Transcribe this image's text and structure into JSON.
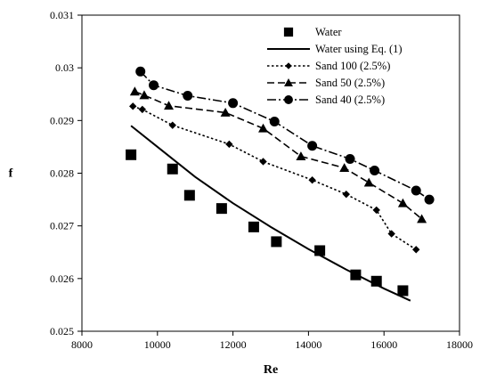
{
  "chart_data": {
    "type": "scatter",
    "xlabel": "Re",
    "ylabel": "f",
    "xlim": [
      8000,
      18000
    ],
    "ylim": [
      0.025,
      0.031
    ],
    "xticks": [
      "8000",
      "10000",
      "12000",
      "14000",
      "16000",
      "18000"
    ],
    "yticks": [
      "0.025",
      "0.026",
      "0.027",
      "0.028",
      "0.029",
      "0.03",
      "0.031"
    ],
    "grid": false,
    "legend_position": "top-right",
    "series": [
      {
        "name": "Water",
        "style": "square-markers",
        "color": "#000000",
        "x": [
          9300,
          10400,
          10850,
          11700,
          12550,
          13150,
          14300,
          15250,
          15800,
          16500
        ],
        "y": [
          0.02835,
          0.02808,
          0.02758,
          0.02733,
          0.02698,
          0.0267,
          0.02653,
          0.02607,
          0.02595,
          0.02577
        ]
      },
      {
        "name": "Water using Eq. (1)",
        "style": "solid-line",
        "color": "#000000",
        "x": [
          9300,
          10000,
          11000,
          12000,
          13000,
          14000,
          15000,
          16000,
          16700
        ],
        "y": [
          0.0289,
          0.0285,
          0.02793,
          0.02743,
          0.02698,
          0.02656,
          0.02617,
          0.02581,
          0.02558
        ]
      },
      {
        "name": "Sand 100 (2.5%)",
        "style": "dotted-line-diamond",
        "color": "#000000",
        "x": [
          9350,
          9600,
          10400,
          11900,
          12800,
          14100,
          15000,
          15800,
          16200,
          16850
        ],
        "y": [
          0.02927,
          0.02921,
          0.02891,
          0.02855,
          0.02822,
          0.02787,
          0.0276,
          0.0273,
          0.02685,
          0.02655
        ]
      },
      {
        "name": "Sand 50 (2.5%)",
        "style": "dashed-line-triangle",
        "color": "#000000",
        "x": [
          9400,
          9650,
          10300,
          11800,
          12800,
          13800,
          14950,
          15600,
          16500,
          17000
        ],
        "y": [
          0.02955,
          0.02948,
          0.02928,
          0.02915,
          0.02885,
          0.02832,
          0.0281,
          0.02782,
          0.02743,
          0.02713
        ]
      },
      {
        "name": "Sand 40 (2.5%)",
        "style": "dashdot-line-circle",
        "color": "#000000",
        "x": [
          9550,
          9900,
          10800,
          12000,
          13100,
          14100,
          15100,
          15750,
          16850,
          17200
        ],
        "y": [
          0.02993,
          0.02967,
          0.02947,
          0.02933,
          0.02898,
          0.02852,
          0.02827,
          0.02805,
          0.02767,
          0.0275
        ]
      }
    ]
  }
}
